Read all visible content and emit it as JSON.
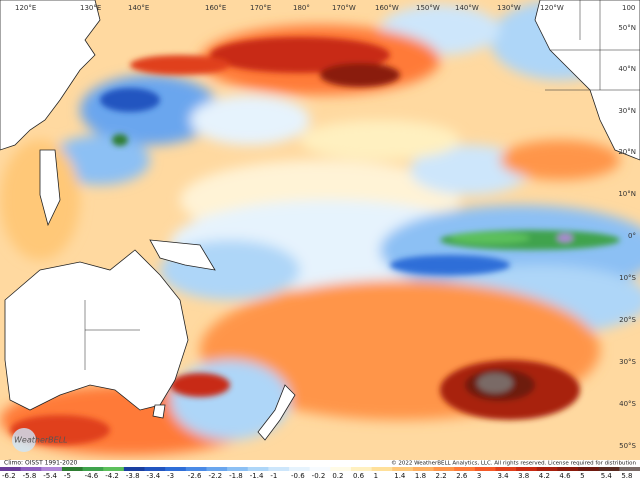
{
  "map": {
    "lon_labels": [
      "120°E",
      "130°E",
      "140°E",
      "160°E",
      "170°E",
      "180°",
      "170°W",
      "160°W",
      "150°W",
      "140°W",
      "130°W",
      "120°W",
      "100"
    ],
    "lat_labels": [
      "50°N",
      "40°N",
      "30°N",
      "20°N",
      "10°N",
      "0°",
      "10°S",
      "20°S",
      "30°S",
      "40°S",
      "50°S"
    ],
    "logo": "WeatherBELL",
    "climo": "Climo: OISST 1991-2020",
    "copyright": "© 2022 WeatherBELL Analytics, LLC. All rights reserved. License required for distribution",
    "colorbar": [
      {
        "label": "-6.2",
        "color": "#6a3d9a"
      },
      {
        "label": "-5.8",
        "color": "#8e5fc0"
      },
      {
        "label": "-5.4",
        "color": "#b087d8"
      },
      {
        "label": "-5",
        "color": "#2e7d32"
      },
      {
        "label": "-4.6",
        "color": "#3fa34d"
      },
      {
        "label": "-4.2",
        "color": "#5cc05c"
      },
      {
        "label": "-3.8",
        "color": "#1a3fa0"
      },
      {
        "label": "-3.4",
        "color": "#2255c0"
      },
      {
        "label": "-3",
        "color": "#2f6ed8"
      },
      {
        "label": "-2.6",
        "color": "#4a8ae6"
      },
      {
        "label": "-2.2",
        "color": "#6aa6ee"
      },
      {
        "label": "-1.8",
        "color": "#8cc0f4"
      },
      {
        "label": "-1.4",
        "color": "#aed6f8"
      },
      {
        "label": "-1",
        "color": "#cde6fb"
      },
      {
        "label": "-0.6",
        "color": "#e6f3fd"
      },
      {
        "label": "-0.2",
        "color": "#f7fbff"
      },
      {
        "label": "0.2",
        "color": "#fffbe6"
      },
      {
        "label": "0.6",
        "color": "#fff0c0"
      },
      {
        "label": "1",
        "color": "#ffe09a"
      },
      {
        "label": "1.4",
        "color": "#ffc878"
      },
      {
        "label": "1.8",
        "color": "#ffb060"
      },
      {
        "label": "2.2",
        "color": "#ff9548"
      },
      {
        "label": "2.6",
        "color": "#ff7a38"
      },
      {
        "label": "3",
        "color": "#f55a28"
      },
      {
        "label": "3.4",
        "color": "#e0401c"
      },
      {
        "label": "3.8",
        "color": "#c82a12"
      },
      {
        "label": "4.2",
        "color": "#a8200e"
      },
      {
        "label": "4.6",
        "color": "#8a1a0c"
      },
      {
        "label": "5",
        "color": "#6e1a10"
      },
      {
        "label": "5.4",
        "color": "#5a2a20"
      },
      {
        "label": "5.8",
        "color": "#7a6a66"
      }
    ]
  }
}
